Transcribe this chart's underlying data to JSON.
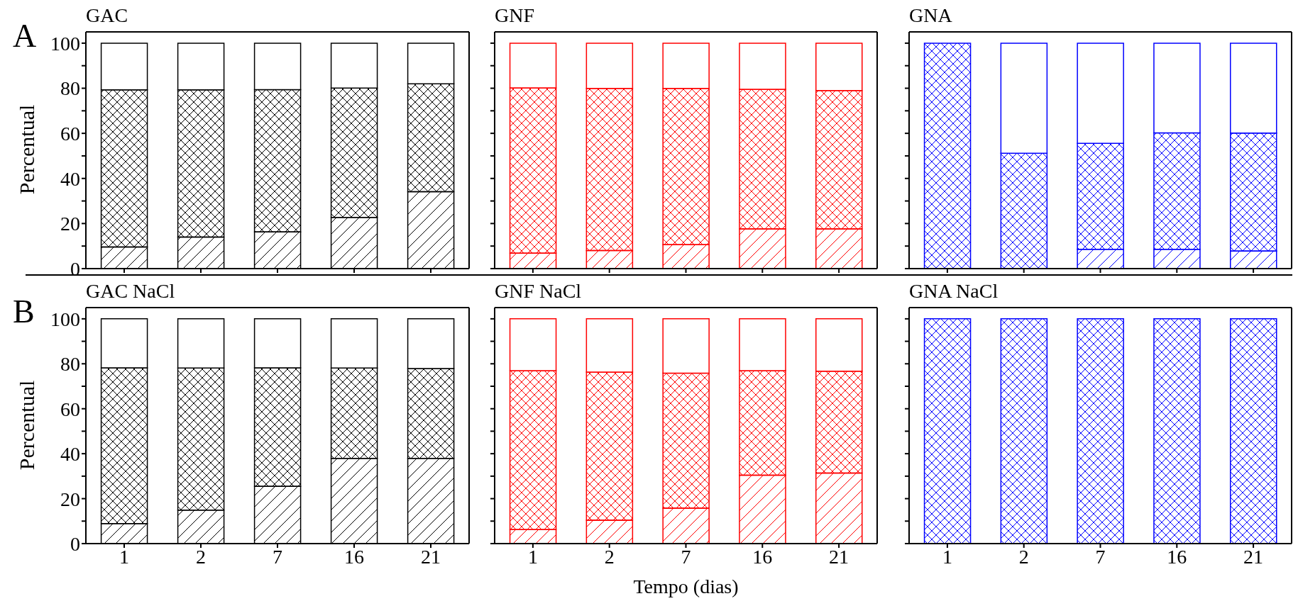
{
  "chart_data": [
    {
      "type": "bar",
      "title": "GAC",
      "annotations": [
        "A"
      ],
      "ylabel": "Percentual",
      "categories": [
        "1",
        "2",
        "7",
        "16",
        "21"
      ],
      "stacked": true,
      "tick_labels": "y",
      "ylim": [
        0,
        105
      ],
      "yticks": [
        0,
        {
          "value": 10,
          "label": null
        },
        20,
        {
          "value": 30,
          "label": null
        },
        40,
        {
          "value": 50,
          "label": null
        },
        60,
        {
          "value": 70,
          "label": null
        },
        80,
        {
          "value": 90,
          "label": null
        },
        100
      ],
      "series": [
        {
          "color": "#000000",
          "values": [
            9.6,
            14,
            16.3,
            22.7,
            34.1
          ]
        },
        {
          "color": "#000000",
          "values": [
            69.7,
            65.3,
            63.1,
            57.4,
            47.9
          ]
        },
        {
          "color": "#000000",
          "values": [
            20.7,
            20.7,
            20.6,
            19.9,
            18
          ]
        }
      ]
    },
    {
      "type": "bar",
      "title": "GNF",
      "categories": [
        "1",
        "2",
        "7",
        "16",
        "21"
      ],
      "stacked": true,
      "tick_labels": false,
      "ylim": [
        0,
        105
      ],
      "yticks": [
        0,
        {
          "value": 10,
          "label": null
        },
        20,
        {
          "value": 30,
          "label": null
        },
        40,
        {
          "value": 50,
          "label": null
        },
        60,
        {
          "value": 70,
          "label": null
        },
        80,
        {
          "value": 90,
          "label": null
        },
        100
      ],
      "series": [
        {
          "color": "#ff0000",
          "values": [
            6.8,
            8,
            10.6,
            17.6,
            17.6
          ]
        },
        {
          "color": "#ff0000",
          "values": [
            73.4,
            71.9,
            69.3,
            61.9,
            61.4
          ]
        },
        {
          "color": "#ff0000",
          "values": [
            19.8,
            20.1,
            20.1,
            20.5,
            21
          ]
        }
      ]
    },
    {
      "type": "bar",
      "title": "GNA",
      "categories": [
        "1",
        "2",
        "7",
        "16",
        "21"
      ],
      "stacked": true,
      "tick_labels": false,
      "ylim": [
        0,
        105
      ],
      "yticks": [
        0,
        {
          "value": 10,
          "label": null
        },
        20,
        {
          "value": 30,
          "label": null
        },
        40,
        {
          "value": 50,
          "label": null
        },
        60,
        {
          "value": 70,
          "label": null
        },
        80,
        {
          "value": 90,
          "label": null
        },
        100
      ],
      "series": [
        {
          "color": "#0000ff",
          "values": [
            0,
            0,
            8.6,
            8.6,
            7.8
          ]
        },
        {
          "color": "#0000ff",
          "values": [
            100,
            51.2,
            47,
            51.6,
            52.3
          ]
        },
        {
          "color": "#0000ff",
          "values": [
            0,
            48.8,
            44.4,
            39.8,
            39.9
          ]
        }
      ]
    },
    {
      "type": "bar",
      "title": "GAC NaCl",
      "annotations": [
        "B"
      ],
      "ylabel": "Percentual",
      "categories": [
        "1",
        "2",
        "7",
        "16",
        "21"
      ],
      "stacked": true,
      "ylim": [
        0,
        105
      ],
      "yticks": [
        0,
        {
          "value": 10,
          "label": null
        },
        20,
        {
          "value": 30,
          "label": null
        },
        40,
        {
          "value": 50,
          "label": null
        },
        60,
        {
          "value": 70,
          "label": null
        },
        80,
        {
          "value": 90,
          "label": null
        },
        100
      ],
      "series": [
        {
          "color": "#000000",
          "values": [
            8.9,
            14.9,
            25.5,
            37.9,
            37.9
          ]
        },
        {
          "color": "#000000",
          "values": [
            69.3,
            63.2,
            52.7,
            40.2,
            40
          ]
        },
        {
          "color": "#000000",
          "values": [
            21.8,
            21.9,
            21.8,
            21.9,
            22.1
          ]
        }
      ]
    },
    {
      "type": "bar",
      "title": "GNF NaCl",
      "xlabel": "Tempo (dias)",
      "categories": [
        "1",
        "2",
        "7",
        "16",
        "21"
      ],
      "stacked": true,
      "tick_labels": "x",
      "ylim": [
        0,
        105
      ],
      "yticks": [
        0,
        {
          "value": 10,
          "label": null
        },
        20,
        {
          "value": 30,
          "label": null
        },
        40,
        {
          "value": 50,
          "label": null
        },
        60,
        {
          "value": 70,
          "label": null
        },
        80,
        {
          "value": 90,
          "label": null
        },
        100
      ],
      "series": [
        {
          "color": "#ff0000",
          "values": [
            6.2,
            10.4,
            15.8,
            30.4,
            31.4
          ]
        },
        {
          "color": "#ff0000",
          "values": [
            70.7,
            65.9,
            60,
            46.5,
            45.3
          ]
        },
        {
          "color": "#ff0000",
          "values": [
            23.1,
            23.7,
            24.2,
            23.1,
            23.3
          ]
        }
      ]
    },
    {
      "type": "bar",
      "title": "GNA NaCl",
      "categories": [
        "1",
        "2",
        "7",
        "16",
        "21"
      ],
      "stacked": true,
      "tick_labels": "x",
      "ylim": [
        0,
        105
      ],
      "yticks": [
        0,
        {
          "value": 10,
          "label": null
        },
        20,
        {
          "value": 30,
          "label": null
        },
        40,
        {
          "value": 50,
          "label": null
        },
        60,
        {
          "value": 70,
          "label": null
        },
        80,
        {
          "value": 90,
          "label": null
        },
        100
      ],
      "series": [
        {
          "color": "#0000ff",
          "values": [
            0,
            0,
            0,
            0,
            0
          ]
        },
        {
          "color": "#0000ff",
          "values": [
            100,
            100,
            100,
            100,
            100
          ]
        },
        {
          "color": "#0000ff",
          "values": [
            0,
            0,
            0,
            0,
            0
          ]
        }
      ]
    }
  ]
}
